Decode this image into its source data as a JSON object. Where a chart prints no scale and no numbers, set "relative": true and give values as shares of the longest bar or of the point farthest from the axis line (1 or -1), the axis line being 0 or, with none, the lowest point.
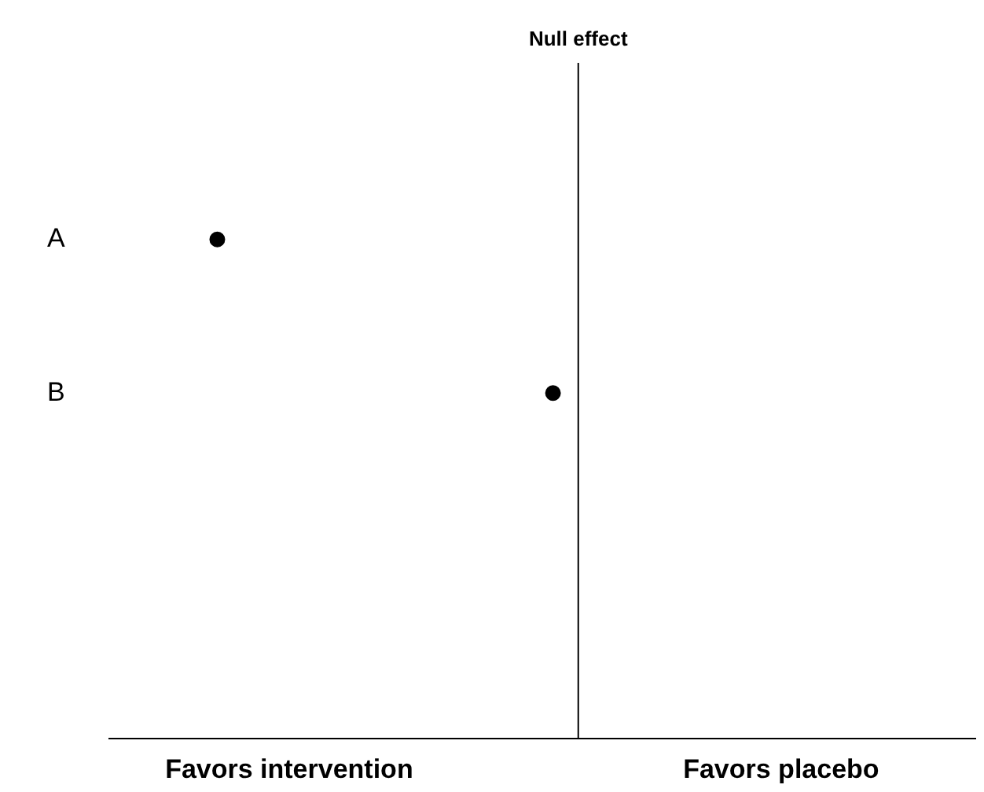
{
  "chart_data": {
    "type": "scatter",
    "orientation": "horizontal",
    "relative": true,
    "categories": [
      "A",
      "B"
    ],
    "values": [
      -1,
      -0.07
    ],
    "color": "#000000",
    "marker": "circle",
    "grid": false,
    "legend": false,
    "ref_lines": [
      {
        "axis": "x",
        "value": 0,
        "label": "Null effect",
        "color": "#000000"
      }
    ],
    "annotations": [
      "Favors intervention",
      "Favors placebo"
    ]
  }
}
